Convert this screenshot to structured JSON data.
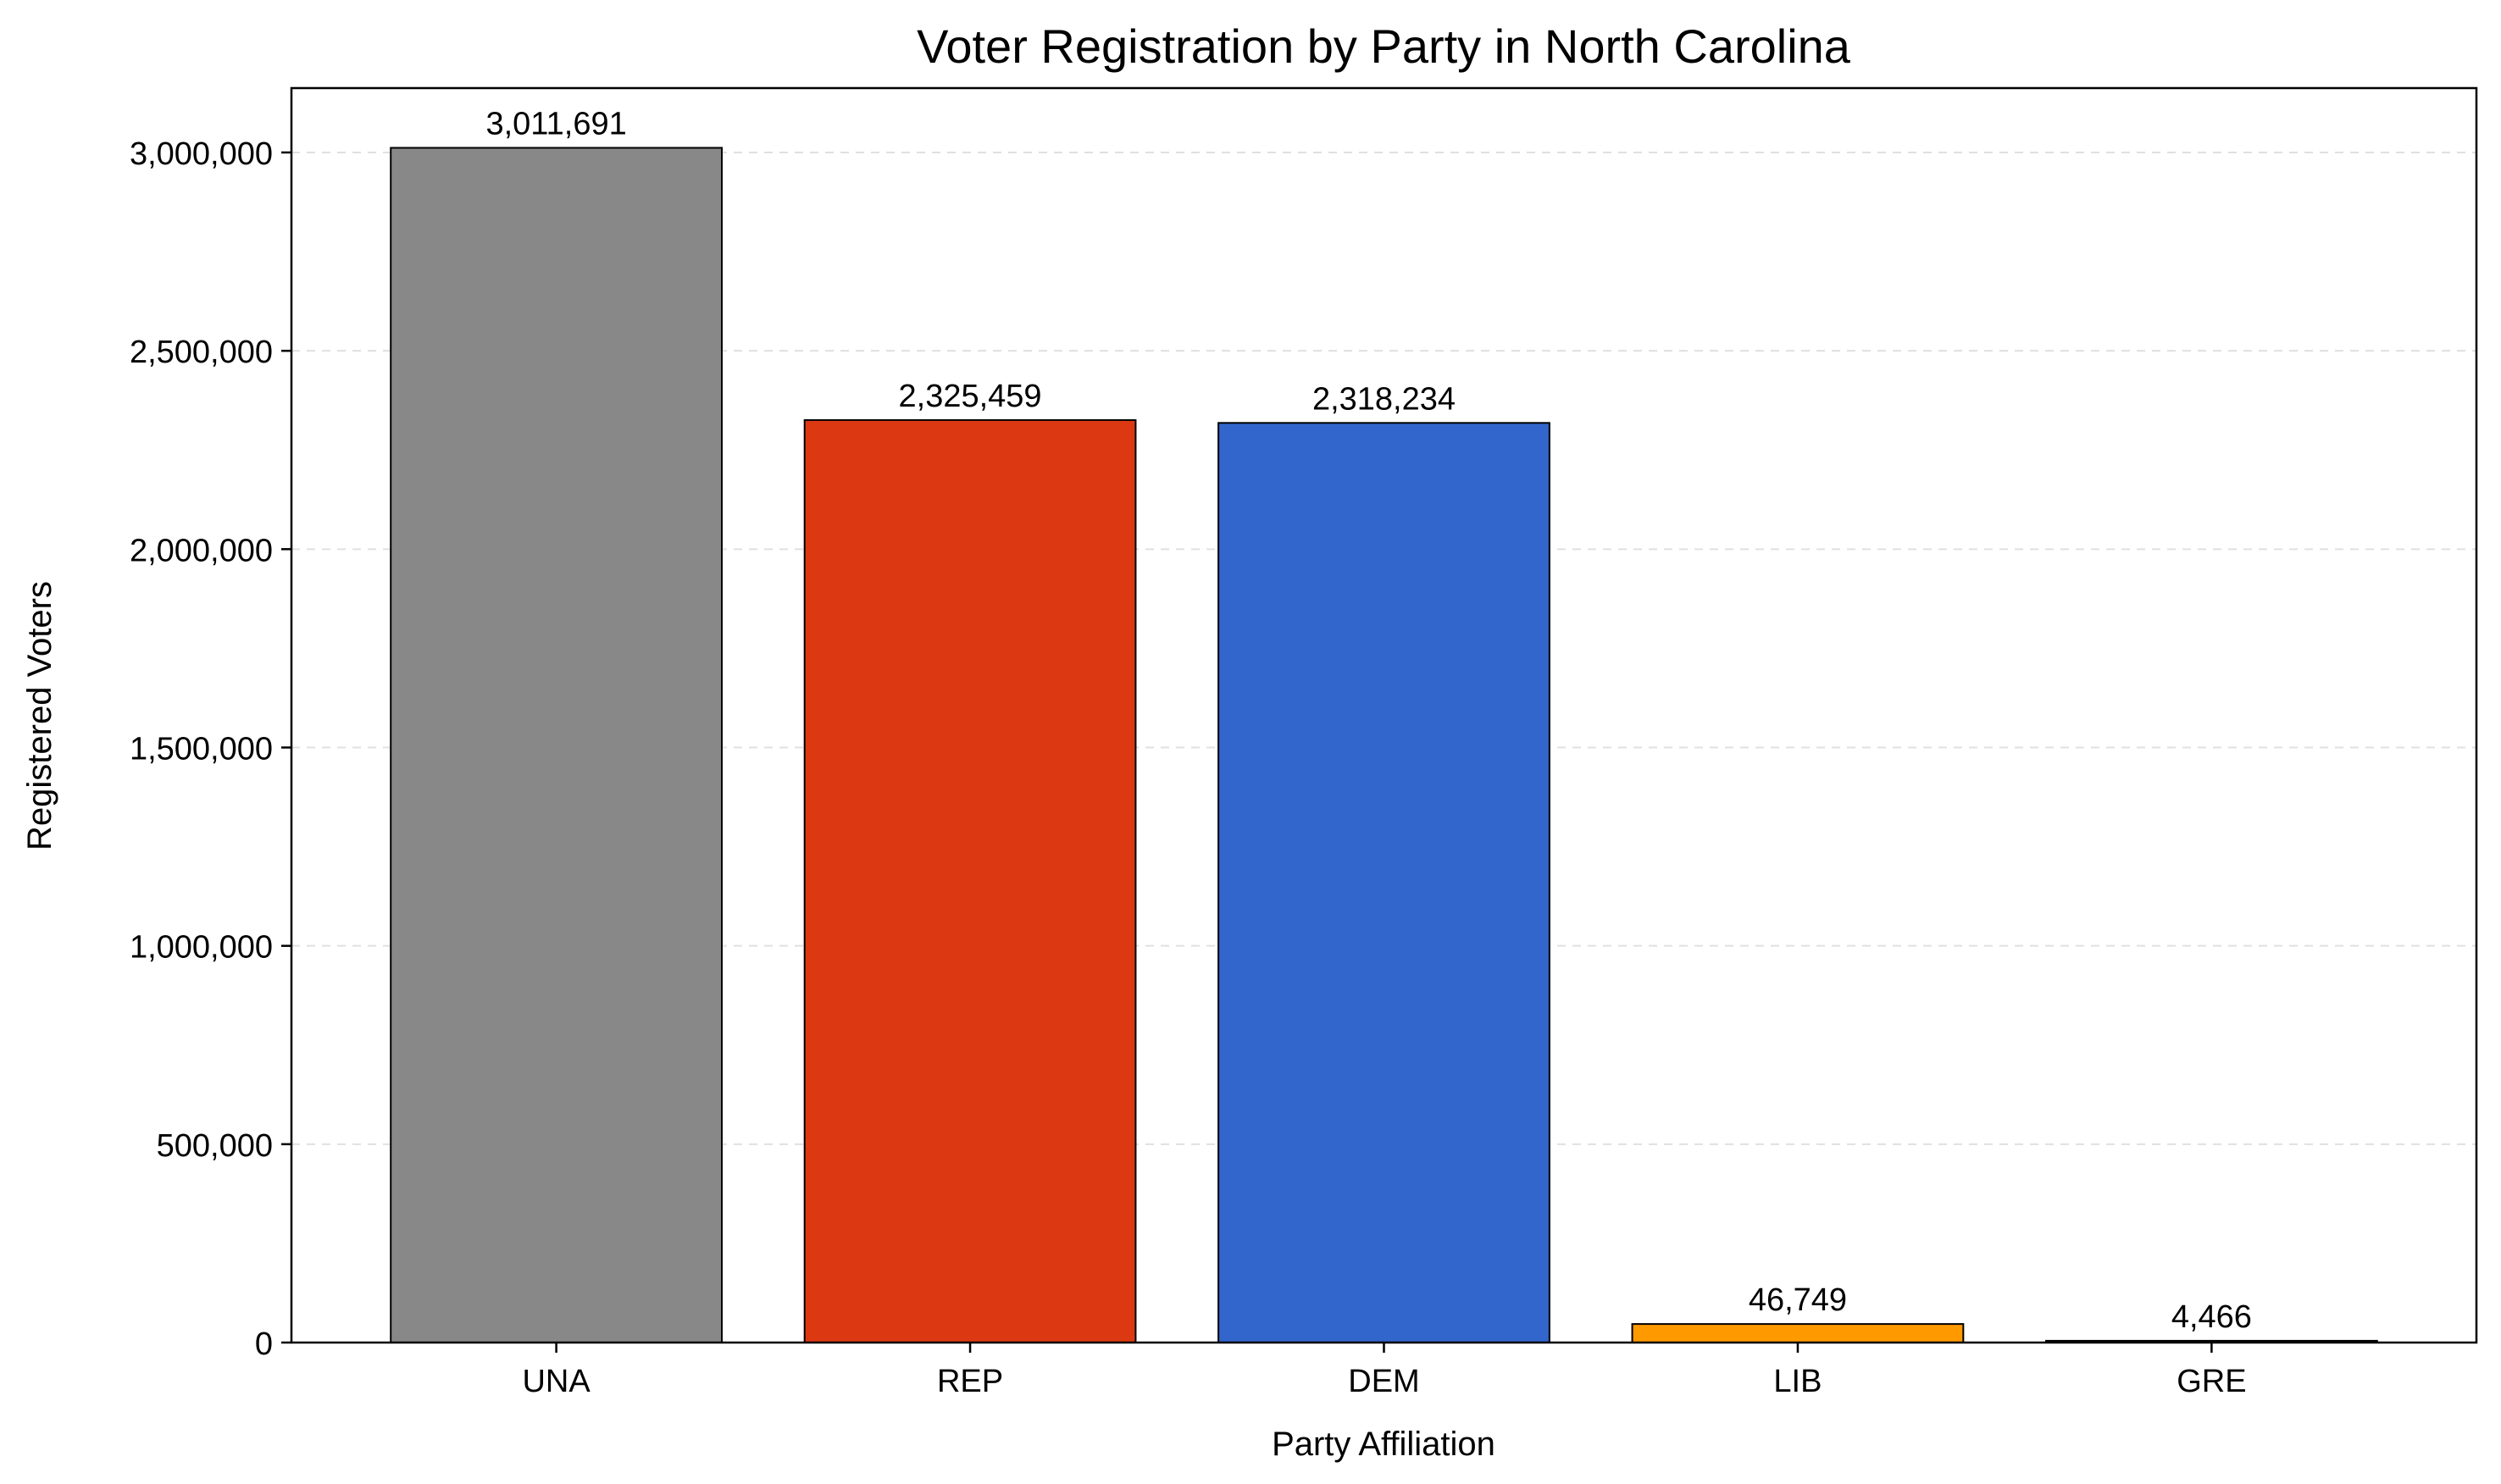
{
  "chart_data": {
    "type": "bar",
    "title": "Voter Registration by Party in North Carolina",
    "xlabel": "Party Affiliation",
    "ylabel": "Registered Voters",
    "categories": [
      "UNA",
      "REP",
      "DEM",
      "LIB",
      "GRE"
    ],
    "values": [
      3011691,
      2325459,
      2318234,
      46749,
      4466
    ],
    "value_labels": [
      "3,011,691",
      "2,325,459",
      "2,318,234",
      "46,749",
      "4,466"
    ],
    "colors": [
      "#888888",
      "#DC3912",
      "#3366CC",
      "#FF9900",
      "#109618"
    ],
    "ylim": [
      0,
      3162276
    ],
    "yticks": [
      0,
      500000,
      1000000,
      1500000,
      2000000,
      2500000,
      3000000
    ],
    "ytick_labels": [
      "0",
      "500,000",
      "1,000,000",
      "1,500,000",
      "2,000,000",
      "2,500,000",
      "3,000,000"
    ],
    "grid": "y-dashed",
    "legend": "none"
  }
}
